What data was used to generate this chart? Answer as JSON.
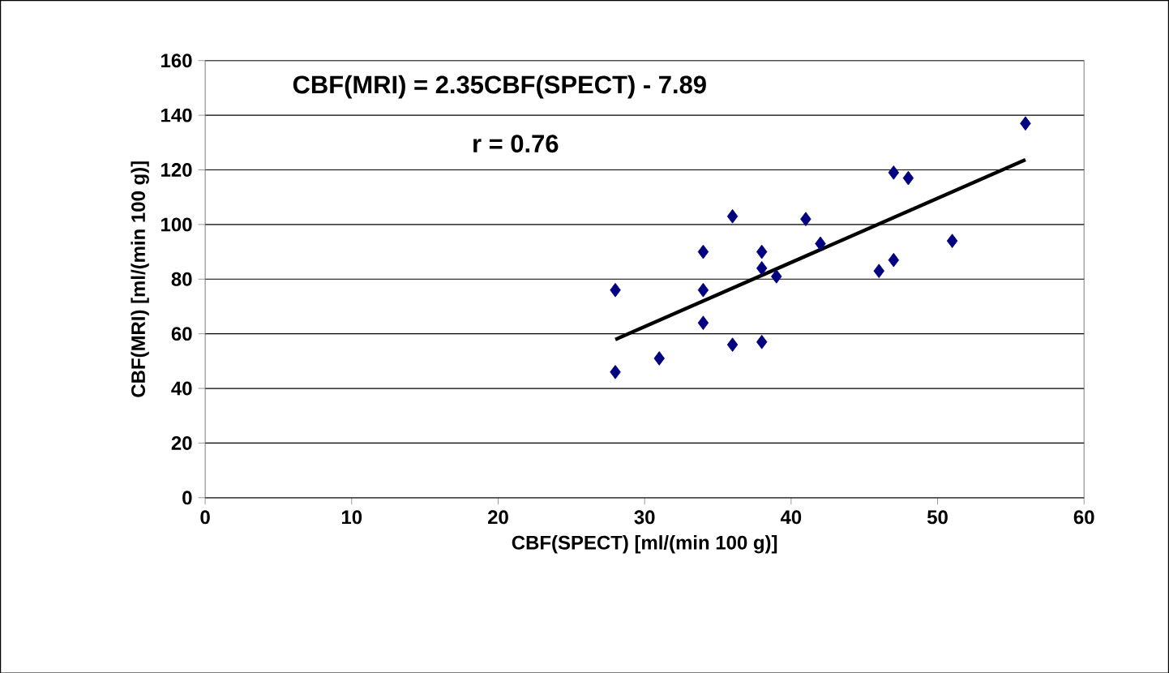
{
  "chart_data": {
    "type": "scatter",
    "xlabel": "CBF(SPECT)  [ml/(min 100 g)]",
    "ylabel": "CBF(MRI)  [ml/(min 100 g)]",
    "annotations": [
      "CBF(MRI) = 2.35CBF(SPECT) - 7.89",
      "r = 0.76"
    ],
    "series": [
      {
        "color": "#000080",
        "marker": "diamond",
        "x": [
          28,
          28,
          31,
          34,
          34,
          34,
          36,
          36,
          38,
          38,
          38,
          39,
          41,
          42,
          46,
          47,
          47,
          48,
          51,
          56
        ],
        "values": [
          76,
          46,
          51,
          90,
          76,
          64,
          103,
          56,
          90,
          84,
          57,
          81,
          102,
          93,
          83,
          119,
          87,
          117,
          94,
          137
        ]
      },
      {
        "type": "line",
        "color": "#000000",
        "marker": "none",
        "x": [
          28,
          56
        ],
        "values": [
          57.9,
          123.7
        ]
      }
    ],
    "xlim": [
      0,
      60
    ],
    "xticks": [
      0,
      10,
      20,
      30,
      40,
      50,
      60
    ],
    "ylim": [
      0,
      160
    ],
    "yticks": [
      0,
      20,
      40,
      60,
      80,
      100,
      120,
      140,
      160
    ],
    "grid": "y"
  }
}
